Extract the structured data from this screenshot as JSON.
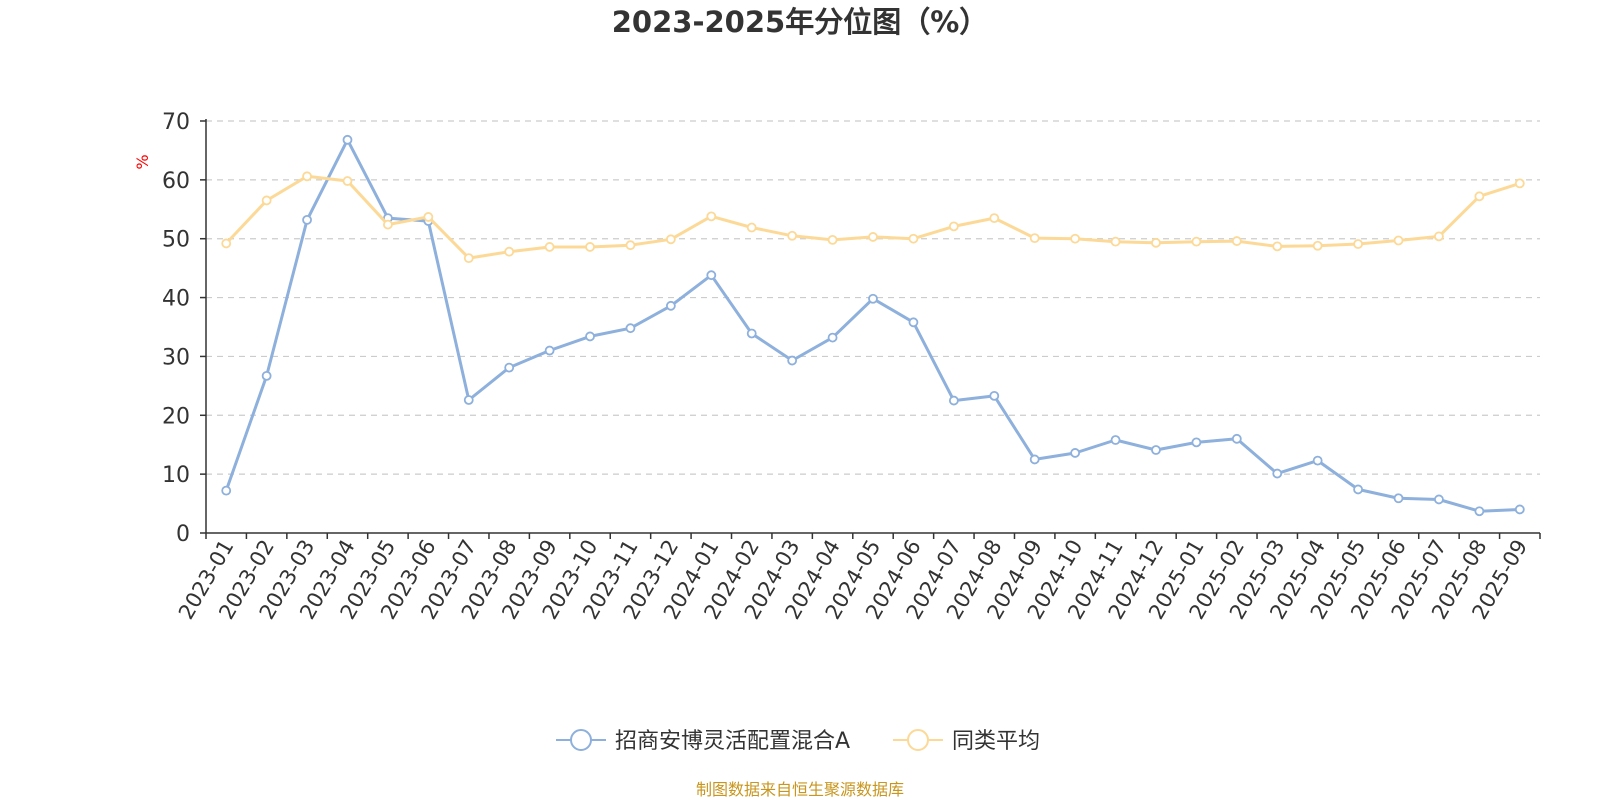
{
  "chart_data": {
    "type": "line",
    "title": "2023-2025年分位图（%）",
    "ylabel": "%",
    "xlabel": "",
    "ylim": [
      0,
      70
    ],
    "yticks": [
      0,
      10,
      20,
      30,
      40,
      50,
      60,
      70
    ],
    "grid": true,
    "legend_position": "bottom-center",
    "categories": [
      "2023-01",
      "2023-02",
      "2023-03",
      "2023-04",
      "2023-05",
      "2023-06",
      "2023-07",
      "2023-08",
      "2023-09",
      "2023-10",
      "2023-11",
      "2023-12",
      "2024-01",
      "2024-02",
      "2024-03",
      "2024-04",
      "2024-05",
      "2024-06",
      "2024-07",
      "2024-08",
      "2024-09",
      "2024-10",
      "2024-11",
      "2024-12",
      "2025-01",
      "2025-02",
      "2025-03",
      "2025-04",
      "2025-05",
      "2025-06",
      "2025-07",
      "2025-08",
      "2025-09"
    ],
    "series": [
      {
        "name": "招商安博灵活配置混合A",
        "color": "#8eb0dc",
        "values": [
          7.2,
          26.7,
          53.2,
          66.8,
          53.5,
          53.0,
          22.6,
          28.1,
          31.0,
          33.4,
          34.8,
          38.6,
          43.8,
          33.9,
          29.3,
          33.2,
          39.8,
          35.8,
          22.5,
          23.3,
          12.5,
          13.6,
          15.8,
          14.1,
          15.4,
          16.0,
          10.1,
          12.3,
          7.4,
          5.9,
          5.7,
          3.7,
          4.0
        ]
      },
      {
        "name": "同类平均",
        "color": "#fcd997",
        "values": [
          49.2,
          56.5,
          60.6,
          59.8,
          52.4,
          53.7,
          46.7,
          47.8,
          48.6,
          48.6,
          48.9,
          49.9,
          53.8,
          51.9,
          50.5,
          49.8,
          50.3,
          50.0,
          52.1,
          53.5,
          50.1,
          50.0,
          49.5,
          49.3,
          49.5,
          49.6,
          48.7,
          48.8,
          49.1,
          49.7,
          50.4,
          57.2,
          59.4
        ]
      }
    ]
  },
  "footer": "制图数据来自恒生聚源数据库",
  "colors": {
    "axis": "#333333",
    "grid": "#cccccc",
    "ylabel": "#ff0000",
    "footer": "#c8961e"
  }
}
